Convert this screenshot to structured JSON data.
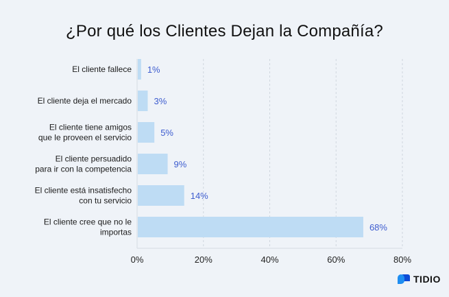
{
  "chart_data": {
    "type": "bar",
    "orientation": "horizontal",
    "title": "¿Por qué los Clientes Dejan la Compañía?",
    "categories": [
      [
        "El cliente fallece"
      ],
      [
        "El cliente deja el mercado"
      ],
      [
        "El cliente tiene amigos",
        "que le proveen el servicio"
      ],
      [
        "El cliente persuadido",
        "para ir con la competencia"
      ],
      [
        "El cliente está insatisfecho",
        "con tu servicio"
      ],
      [
        "El cliente cree que no le",
        "importas"
      ]
    ],
    "values": [
      1,
      3,
      5,
      9,
      14,
      68
    ],
    "value_labels": [
      "1%",
      "3%",
      "5%",
      "9%",
      "14%",
      "68%"
    ],
    "xlim": [
      0,
      80
    ],
    "xticks": [
      0,
      20,
      40,
      60,
      80
    ],
    "xtick_labels": [
      "0%",
      "20%",
      "40%",
      "60%",
      "80%"
    ],
    "grid": "vertical dashed",
    "colors": {
      "bar": "#bedcf4",
      "value_label": "#3d5ccf",
      "grid": "#cfd6de"
    }
  },
  "brand": {
    "name": "TIDIO",
    "icon": "tidio-chat-bubbles-icon",
    "colors": [
      "#1f8ef1",
      "#0d4bd6"
    ]
  }
}
